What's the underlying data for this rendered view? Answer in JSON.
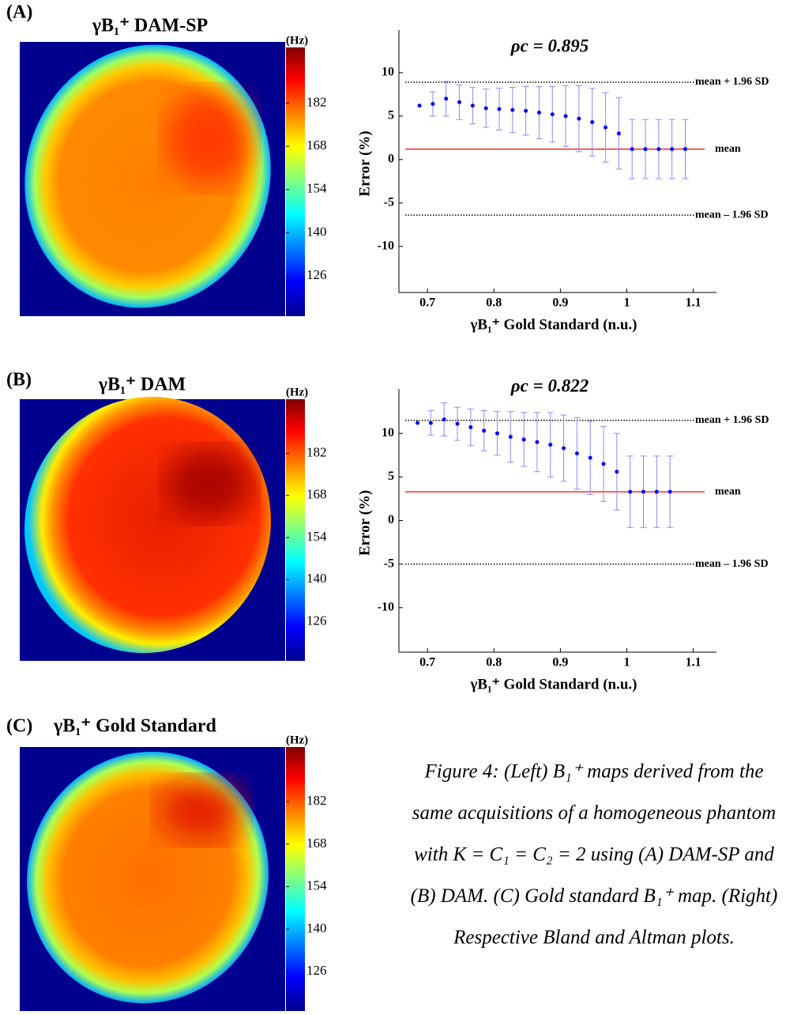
{
  "panels": [
    {
      "label": "(A)",
      "map_title": "γB₁⁺ DAM-SP",
      "colorbar_unit": "(Hz)",
      "clim": [
        113,
        200
      ],
      "colorbar_ticks": [
        126,
        140,
        154,
        168,
        182
      ]
    },
    {
      "label": "(B)",
      "map_title": "γB₁⁺ DAM",
      "colorbar_unit": "(Hz)",
      "clim": [
        113,
        200
      ],
      "colorbar_ticks": [
        126,
        140,
        154,
        168,
        182
      ]
    },
    {
      "label": "(C)",
      "map_title": "γB₁⁺ Gold Standard",
      "colorbar_unit": "(Hz)",
      "clim": [
        113,
        200
      ],
      "colorbar_ticks": [
        126,
        140,
        154,
        168,
        182
      ]
    }
  ],
  "chart_data": [
    {
      "type": "errorbar",
      "title": "ρc = 0.895",
      "x_label": "γB₁⁺ Gold Standard (n.u.)",
      "y_label": "Error (%)",
      "color": "#0000ff",
      "x": [
        0.688,
        0.708,
        0.728,
        0.748,
        0.768,
        0.788,
        0.808,
        0.828,
        0.848,
        0.868,
        0.888,
        0.908,
        0.928,
        0.948,
        0.968,
        0.988,
        1.008,
        1.028,
        1.048,
        1.068,
        1.088
      ],
      "values": [
        6.2,
        6.4,
        7.0,
        6.6,
        6.2,
        5.9,
        5.8,
        5.7,
        5.6,
        5.4,
        5.2,
        5.0,
        4.7,
        4.3,
        3.7,
        3.0,
        1.2,
        1.2,
        1.2,
        1.2,
        1.2
      ],
      "errors": [
        null,
        1.4,
        2.0,
        2.0,
        2.1,
        2.2,
        2.4,
        2.6,
        2.8,
        3.0,
        3.2,
        3.5,
        3.8,
        3.9,
        4.0,
        4.1,
        3.4,
        3.4,
        3.4,
        3.4,
        3.4
      ],
      "reference_lines": [
        {
          "label": "mean + 1.96 SD",
          "value": 8.9,
          "color": "#000000",
          "style": "dotted"
        },
        {
          "label": "mean",
          "value": 1.2,
          "color": "#ff0000",
          "style": "solid"
        },
        {
          "label": "mean – 1.96 SD",
          "value": -6.4,
          "color": "#000000",
          "style": "dotted"
        }
      ],
      "xlim": [
        0.657,
        1.135
      ],
      "ylim": [
        -15.3,
        14.9
      ],
      "xticks": [
        0.7,
        0.8,
        0.9,
        1,
        1.1
      ],
      "yticks": [
        -10,
        -5,
        0,
        5,
        10
      ]
    },
    {
      "type": "errorbar",
      "title": "ρc = 0.822",
      "x_label": "γB₁⁺ Gold Standard (n.u.)",
      "y_label": "Error (%)",
      "color": "#0000ff",
      "x": [
        0.685,
        0.705,
        0.725,
        0.745,
        0.765,
        0.785,
        0.805,
        0.825,
        0.845,
        0.865,
        0.885,
        0.905,
        0.925,
        0.945,
        0.965,
        0.985,
        1.005,
        1.025,
        1.045,
        1.065
      ],
      "values": [
        11.2,
        11.2,
        11.6,
        11.1,
        10.7,
        10.3,
        10.0,
        9.6,
        9.3,
        9.0,
        8.7,
        8.3,
        7.7,
        7.2,
        6.5,
        5.6,
        3.3,
        3.3,
        3.3,
        3.3
      ],
      "errors": [
        null,
        1.4,
        1.9,
        1.9,
        2.1,
        2.3,
        2.5,
        2.9,
        3.1,
        3.4,
        3.7,
        3.8,
        4.1,
        4.2,
        4.3,
        4.4,
        4.1,
        4.1,
        4.1,
        4.1
      ],
      "reference_lines": [
        {
          "label": "mean + 1.96 SD",
          "value": 11.5,
          "color": "#000000",
          "style": "dotted"
        },
        {
          "label": "mean",
          "value": 3.3,
          "color": "#ff0000",
          "style": "solid"
        },
        {
          "label": "mean – 1.96 SD",
          "value": -5.0,
          "color": "#000000",
          "style": "dotted"
        }
      ],
      "xlim": [
        0.657,
        1.135
      ],
      "ylim": [
        -15.1,
        15.1
      ],
      "xticks": [
        0.7,
        0.8,
        0.9,
        1,
        1.1
      ],
      "yticks": [
        -10,
        -5,
        0,
        5,
        10
      ]
    }
  ],
  "caption": [
    "Figure 4: (Left) B₁⁺ maps derived from the",
    "same acquisitions of a homogeneous phantom",
    "with K = C₁ = C₂ = 2 using (A) DAM-SP and",
    "(B) DAM. (C) Gold standard B₁⁺ map. (Right)",
    "Respective Bland and Altman plots."
  ]
}
